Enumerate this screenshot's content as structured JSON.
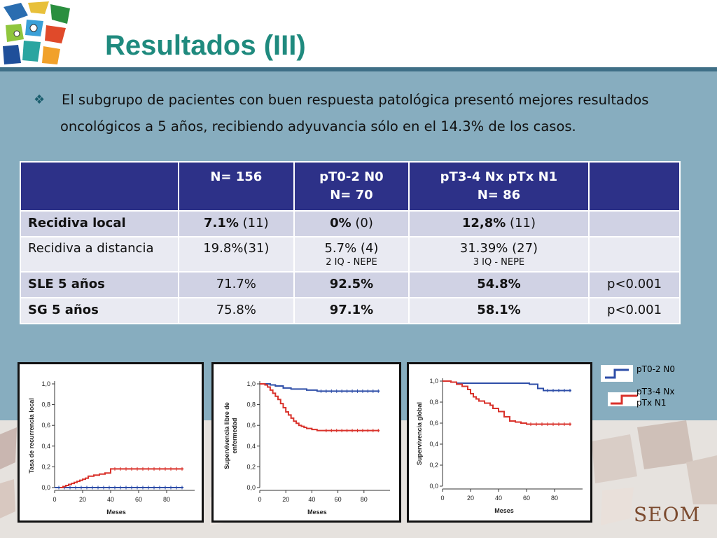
{
  "slide": {
    "title": "Resultados (III)",
    "bullet_line1": "El subgrupo de pacientes con buen respuesta patológica presentó mejores resultados",
    "bullet_line2": "oncológicos a 5 años, recibiendo adyuvancia sólo en el 14.3% de los casos."
  },
  "table": {
    "header": {
      "c1": "N= 156",
      "c2_l1": "pT0-2 N0",
      "c2_l2": "N= 70",
      "c3_l1": "pT3-4 Nx pTx N1",
      "c3_l2": "N= 86"
    },
    "rows": [
      {
        "label": "Recidiva local",
        "c1a": "7.1%",
        "c1b": " (11)",
        "c2a": "0%",
        "c2b": " (0)",
        "c3a": "12,8%",
        "c3b": " (11)",
        "c4": ""
      },
      {
        "label": "Recidiva a distancia",
        "c1": "19.8%(31)",
        "c2": "5.7% (4)",
        "c2_note": "2 IQ - NEPE",
        "c3": "31.39% (27)",
        "c3_note": "3 IQ - NEPE",
        "c4": ""
      },
      {
        "label": "SLE 5 años",
        "c1": "71.7%",
        "c2": "92.5%",
        "c3": "54.8%",
        "c4": "p<0.001"
      },
      {
        "label": "SG 5 años",
        "c1": "75.8%",
        "c2": "97.1%",
        "c3": "58.1%",
        "c4": "p<0.001"
      }
    ]
  },
  "legend": {
    "s1": "pT0-2 N0",
    "s2_l1": "pT3-4 Nx",
    "s2_l2": "pTx N1"
  },
  "chart_data": [
    {
      "type": "line",
      "ylabel": "Tasa de recurrencia local",
      "xlabel": "Meses",
      "xlim": [
        0,
        100
      ],
      "ylim": [
        0,
        1
      ],
      "xticks": [
        "0",
        "20",
        "40",
        "60",
        "80"
      ],
      "yticks": [
        "0,0",
        "0,2",
        "0,4",
        "0,6",
        "0,8",
        "1,0"
      ],
      "series": [
        {
          "color": "#2e4ea8",
          "x": [
            0,
            92
          ],
          "y": [
            0.0,
            0.0
          ]
        },
        {
          "color": "#d9322b",
          "x": [
            4,
            6,
            8,
            10,
            12,
            14,
            16,
            18,
            20,
            22,
            24,
            28,
            32,
            36,
            40,
            92
          ],
          "y": [
            0.0,
            0.01,
            0.02,
            0.03,
            0.04,
            0.05,
            0.06,
            0.07,
            0.08,
            0.09,
            0.11,
            0.12,
            0.13,
            0.14,
            0.18,
            0.18
          ]
        }
      ]
    },
    {
      "type": "line",
      "ylabel_l1": "Supervivencia libre de",
      "ylabel_l2": "enfermedad",
      "xlabel": "Meses",
      "xlim": [
        0,
        100
      ],
      "ylim": [
        0,
        1
      ],
      "xticks": [
        "0",
        "20",
        "40",
        "60",
        "80"
      ],
      "yticks": [
        "0,0",
        "0,2",
        "0,4",
        "0,6",
        "0,8",
        "1,0"
      ],
      "series": [
        {
          "color": "#2e4ea8",
          "x": [
            0,
            8,
            12,
            18,
            24,
            30,
            36,
            40,
            44,
            92
          ],
          "y": [
            1.0,
            0.99,
            0.98,
            0.96,
            0.95,
            0.95,
            0.94,
            0.94,
            0.93,
            0.93
          ]
        },
        {
          "color": "#d9322b",
          "x": [
            0,
            4,
            6,
            8,
            10,
            12,
            14,
            16,
            18,
            20,
            22,
            24,
            26,
            28,
            30,
            32,
            34,
            36,
            40,
            44,
            48,
            92
          ],
          "y": [
            1.0,
            0.99,
            0.97,
            0.94,
            0.91,
            0.88,
            0.85,
            0.81,
            0.77,
            0.73,
            0.7,
            0.67,
            0.64,
            0.62,
            0.6,
            0.59,
            0.58,
            0.57,
            0.56,
            0.55,
            0.55,
            0.55
          ]
        }
      ]
    },
    {
      "type": "line",
      "ylabel": "Supervivencia global",
      "xlabel": "Meses",
      "xlim": [
        0,
        100
      ],
      "ylim": [
        0,
        1
      ],
      "xticks": [
        "0",
        "20",
        "40",
        "60",
        "80"
      ],
      "yticks": [
        "0,0",
        "0,2",
        "0,4",
        "0,6",
        "0,8",
        "1,0"
      ],
      "series": [
        {
          "color": "#2e4ea8",
          "x": [
            0,
            6,
            10,
            56,
            62,
            68,
            72,
            92
          ],
          "y": [
            1.0,
            0.99,
            0.98,
            0.98,
            0.97,
            0.93,
            0.91,
            0.91
          ]
        },
        {
          "color": "#d9322b",
          "x": [
            0,
            6,
            10,
            14,
            18,
            20,
            22,
            24,
            26,
            30,
            34,
            36,
            40,
            44,
            48,
            52,
            56,
            60,
            92
          ],
          "y": [
            1.0,
            0.99,
            0.97,
            0.95,
            0.92,
            0.88,
            0.85,
            0.83,
            0.81,
            0.79,
            0.77,
            0.74,
            0.71,
            0.66,
            0.62,
            0.61,
            0.6,
            0.59,
            0.59
          ]
        }
      ]
    }
  ],
  "brand": "SEOM",
  "colors": {
    "title": "#1f8a7e",
    "table_header": "#2d3188",
    "blue_series": "#2e4ea8",
    "red_series": "#d9322b"
  }
}
